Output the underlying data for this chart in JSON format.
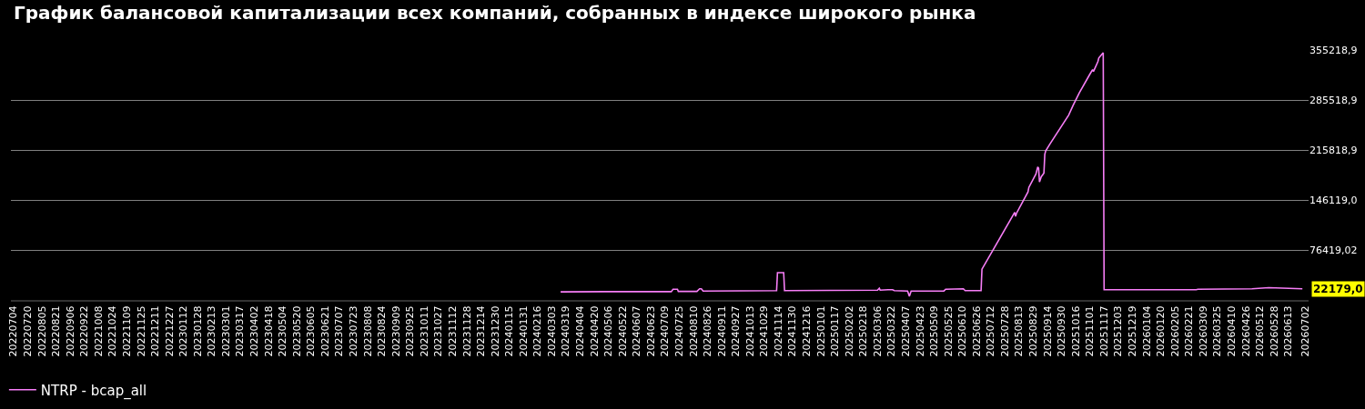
{
  "chart_data": {
    "type": "line",
    "title": "График балансовой капитализации всех компаний, собранных в индексе широкого рынка",
    "x": [
      "2024-03-13",
      "2024-05-02",
      "2024-07-16",
      "2024-07-18",
      "2024-07-23",
      "2024-07-24",
      "2024-08-14",
      "2024-08-17",
      "2024-08-19",
      "2024-08-21",
      "2024-11-12",
      "2024-11-13",
      "2024-11-20",
      "2024-11-21",
      "2025-03-06",
      "2025-03-08",
      "2025-03-09",
      "2025-03-18",
      "2025-03-23",
      "2025-03-25",
      "2025-04-09",
      "2025-04-11",
      "2025-04-13",
      "2025-05-06",
      "2025-05-20",
      "2025-05-22",
      "2025-06-11",
      "2025-06-13",
      "2025-07-01",
      "2025-07-02",
      "2025-08-08",
      "2025-08-09",
      "2025-08-10",
      "2025-08-23",
      "2025-08-24",
      "2025-09-01",
      "2025-09-03",
      "2025-09-04",
      "2025-09-05",
      "2025-09-07",
      "2025-09-10",
      "2025-09-11",
      "2025-09-12",
      "2025-09-17",
      "2025-10-08",
      "2025-10-13",
      "2025-10-20",
      "2025-11-01",
      "2025-11-04",
      "2025-11-05",
      "2025-11-10",
      "2025-11-11",
      "2025-11-16",
      "2025-11-17",
      "2026-03-01",
      "2026-03-03",
      "2026-05-03",
      "2026-05-22",
      "2026-06-29"
    ],
    "series": [
      {
        "name": "NTRP - bcap_all",
        "color": "#f77ef7",
        "values": [
          17920,
          18300,
          18300,
          21650,
          21650,
          18540,
          18540,
          22280,
          22280,
          19170,
          19790,
          44690,
          44690,
          19790,
          20410,
          22900,
          20410,
          21030,
          21030,
          19790,
          19170,
          11700,
          19170,
          19170,
          19170,
          21650,
          22280,
          19790,
          19790,
          49660,
          128730,
          123120,
          127480,
          157360,
          163590,
          182260,
          192220,
          190350,
          171060,
          178530,
          183510,
          209600,
          214570,
          224530,
          264360,
          278050,
          295480,
          321620,
          327840,
          325350,
          339050,
          344030,
          351500,
          21030,
          21030,
          21650,
          22280,
          23770,
          22179
        ]
      }
    ],
    "annotations": [
      {
        "text": "22179,0",
        "x": "2026-06-29",
        "y": 22179
      }
    ],
    "ylim": [
      6719.1,
      355218.9
    ],
    "yticks": [
      {
        "value": 76419.02,
        "label": "76419,02"
      },
      {
        "value": 146119.0,
        "label": "146119,0"
      },
      {
        "value": 215818.9,
        "label": "215818,9"
      },
      {
        "value": 285518.9,
        "label": "285518,9"
      },
      {
        "value": 355218.9,
        "label": "355218,9"
      }
    ],
    "xlim": [
      "2022-07-01",
      "2026-07-06"
    ],
    "xticks": [
      {
        "value": "2022-07-04",
        "label": "20220704"
      },
      {
        "value": "2022-07-20",
        "label": "20220720"
      },
      {
        "value": "2022-08-05",
        "label": "20220805"
      },
      {
        "value": "2022-08-21",
        "label": "20220821"
      },
      {
        "value": "2022-09-06",
        "label": "20220906"
      },
      {
        "value": "2022-09-22",
        "label": "20220922"
      },
      {
        "value": "2022-10-08",
        "label": "20221008"
      },
      {
        "value": "2022-10-24",
        "label": "20221024"
      },
      {
        "value": "2022-11-09",
        "label": "20221109"
      },
      {
        "value": "2022-11-25",
        "label": "20221125"
      },
      {
        "value": "2022-12-11",
        "label": "20221211"
      },
      {
        "value": "2022-12-27",
        "label": "20221227"
      },
      {
        "value": "2023-01-12",
        "label": "20230112"
      },
      {
        "value": "2023-01-28",
        "label": "20230128"
      },
      {
        "value": "2023-02-13",
        "label": "20230213"
      },
      {
        "value": "2023-03-01",
        "label": "20230301"
      },
      {
        "value": "2023-03-17",
        "label": "20230317"
      },
      {
        "value": "2023-04-02",
        "label": "20230402"
      },
      {
        "value": "2023-04-18",
        "label": "20230418"
      },
      {
        "value": "2023-05-04",
        "label": "20230504"
      },
      {
        "value": "2023-05-20",
        "label": "20230520"
      },
      {
        "value": "2023-06-05",
        "label": "20230605"
      },
      {
        "value": "2023-06-21",
        "label": "20230621"
      },
      {
        "value": "2023-07-07",
        "label": "20230707"
      },
      {
        "value": "2023-07-23",
        "label": "20230723"
      },
      {
        "value": "2023-08-08",
        "label": "20230808"
      },
      {
        "value": "2023-08-24",
        "label": "20230824"
      },
      {
        "value": "2023-09-09",
        "label": "20230909"
      },
      {
        "value": "2023-09-25",
        "label": "20230925"
      },
      {
        "value": "2023-10-11",
        "label": "20231011"
      },
      {
        "value": "2023-10-27",
        "label": "20231027"
      },
      {
        "value": "2023-11-12",
        "label": "20231112"
      },
      {
        "value": "2023-11-28",
        "label": "20231128"
      },
      {
        "value": "2023-12-14",
        "label": "20231214"
      },
      {
        "value": "2023-12-30",
        "label": "20231230"
      },
      {
        "value": "2024-01-15",
        "label": "20240115"
      },
      {
        "value": "2024-01-31",
        "label": "20240131"
      },
      {
        "value": "2024-02-16",
        "label": "20240216"
      },
      {
        "value": "2024-03-03",
        "label": "20240303"
      },
      {
        "value": "2024-03-19",
        "label": "20240319"
      },
      {
        "value": "2024-04-04",
        "label": "20240404"
      },
      {
        "value": "2024-04-20",
        "label": "20240420"
      },
      {
        "value": "2024-05-06",
        "label": "20240506"
      },
      {
        "value": "2024-05-22",
        "label": "20240522"
      },
      {
        "value": "2024-06-07",
        "label": "20240607"
      },
      {
        "value": "2024-06-23",
        "label": "20240623"
      },
      {
        "value": "2024-07-09",
        "label": "20240709"
      },
      {
        "value": "2024-07-25",
        "label": "20240725"
      },
      {
        "value": "2024-08-10",
        "label": "20240810"
      },
      {
        "value": "2024-08-26",
        "label": "20240826"
      },
      {
        "value": "2024-09-11",
        "label": "20240911"
      },
      {
        "value": "2024-09-27",
        "label": "20240927"
      },
      {
        "value": "2024-10-13",
        "label": "20241013"
      },
      {
        "value": "2024-10-29",
        "label": "20241029"
      },
      {
        "value": "2024-11-14",
        "label": "20241114"
      },
      {
        "value": "2024-11-30",
        "label": "20241130"
      },
      {
        "value": "2024-12-16",
        "label": "20241216"
      },
      {
        "value": "2025-01-01",
        "label": "20250101"
      },
      {
        "value": "2025-01-17",
        "label": "20250117"
      },
      {
        "value": "2025-02-02",
        "label": "20250202"
      },
      {
        "value": "2025-02-18",
        "label": "20250218"
      },
      {
        "value": "2025-03-06",
        "label": "20250306"
      },
      {
        "value": "2025-03-22",
        "label": "20250322"
      },
      {
        "value": "2025-04-07",
        "label": "20250407"
      },
      {
        "value": "2025-04-23",
        "label": "20250423"
      },
      {
        "value": "2025-05-09",
        "label": "20250509"
      },
      {
        "value": "2025-05-25",
        "label": "20250525"
      },
      {
        "value": "2025-06-10",
        "label": "20250610"
      },
      {
        "value": "2025-06-26",
        "label": "20250626"
      },
      {
        "value": "2025-07-12",
        "label": "20250712"
      },
      {
        "value": "2025-07-28",
        "label": "20250728"
      },
      {
        "value": "2025-08-13",
        "label": "20250813"
      },
      {
        "value": "2025-08-29",
        "label": "20250829"
      },
      {
        "value": "2025-09-14",
        "label": "20250914"
      },
      {
        "value": "2025-09-30",
        "label": "20250930"
      },
      {
        "value": "2025-10-16",
        "label": "20251016"
      },
      {
        "value": "2025-11-01",
        "label": "20251101"
      },
      {
        "value": "2025-11-17",
        "label": "20251117"
      },
      {
        "value": "2025-12-03",
        "label": "20251203"
      },
      {
        "value": "2025-12-19",
        "label": "20251219"
      },
      {
        "value": "2026-01-04",
        "label": "20260104"
      },
      {
        "value": "2026-01-20",
        "label": "20260120"
      },
      {
        "value": "2026-02-05",
        "label": "20260205"
      },
      {
        "value": "2026-02-21",
        "label": "20260221"
      },
      {
        "value": "2026-03-09",
        "label": "20260309"
      },
      {
        "value": "2026-03-25",
        "label": "20260325"
      },
      {
        "value": "2026-04-10",
        "label": "20260410"
      },
      {
        "value": "2026-04-26",
        "label": "20260426"
      },
      {
        "value": "2026-05-12",
        "label": "20260512"
      },
      {
        "value": "2026-05-28",
        "label": "20260528"
      },
      {
        "value": "2026-06-13",
        "label": "20260613"
      },
      {
        "value": "2026-07-02",
        "label": "20260702"
      }
    ],
    "grid": "y",
    "legend": "bottom left",
    "marker": "none",
    "line_style": "solid"
  }
}
